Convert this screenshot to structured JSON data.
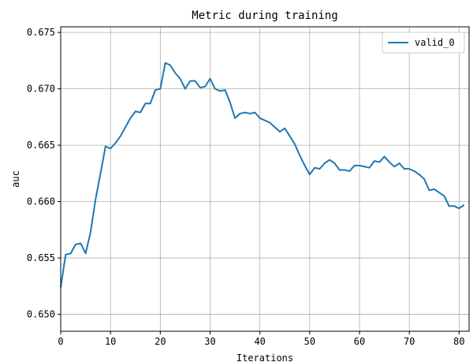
{
  "chart_data": {
    "type": "line",
    "title": "Metric during training",
    "xlabel": "Iterations",
    "ylabel": "auc",
    "xlim": [
      0,
      82
    ],
    "ylim": [
      0.6485,
      0.6755
    ],
    "grid": true,
    "legend_position": "top-right",
    "xticks": [
      "0",
      "10",
      "20",
      "30",
      "40",
      "50",
      "60",
      "70",
      "80"
    ],
    "yticks": [
      "0.650",
      "0.655",
      "0.660",
      "0.665",
      "0.670",
      "0.675"
    ],
    "series": [
      {
        "name": "valid_0",
        "color": "#1f77b4",
        "x": [
          0,
          1,
          2,
          3,
          4,
          5,
          6,
          7,
          8,
          9,
          10,
          11,
          12,
          13,
          14,
          15,
          16,
          17,
          18,
          19,
          20,
          21,
          22,
          23,
          24,
          25,
          26,
          27,
          28,
          29,
          30,
          31,
          32,
          33,
          34,
          35,
          36,
          37,
          38,
          39,
          40,
          41,
          42,
          43,
          44,
          45,
          46,
          47,
          48,
          49,
          50,
          51,
          52,
          53,
          54,
          55,
          56,
          57,
          58,
          59,
          60,
          61,
          62,
          63,
          64,
          65,
          66,
          67,
          68,
          69,
          70,
          71,
          72,
          73,
          74,
          75,
          76,
          77,
          78,
          79,
          80,
          81
        ],
        "values": [
          0.6524,
          0.6553,
          0.6554,
          0.6562,
          0.6563,
          0.6554,
          0.6573,
          0.6602,
          0.6625,
          0.6649,
          0.6647,
          0.6652,
          0.6658,
          0.6666,
          0.6674,
          0.668,
          0.6679,
          0.6687,
          0.6687,
          0.6699,
          0.67,
          0.6723,
          0.6721,
          0.6714,
          0.6709,
          0.67,
          0.6707,
          0.6707,
          0.6701,
          0.6702,
          0.6709,
          0.67,
          0.6698,
          0.6699,
          0.6688,
          0.6674,
          0.6678,
          0.6679,
          0.6678,
          0.6679,
          0.6674,
          0.6672,
          0.667,
          0.6666,
          0.6662,
          0.6665,
          0.6658,
          0.6651,
          0.6641,
          0.6632,
          0.6624,
          0.663,
          0.6629,
          0.6634,
          0.6637,
          0.6634,
          0.6628,
          0.6628,
          0.6627,
          0.6632,
          0.6632,
          0.6631,
          0.663,
          0.6636,
          0.6635,
          0.664,
          0.6635,
          0.6631,
          0.6634,
          0.6629,
          0.6629,
          0.6627,
          0.6624,
          0.662,
          0.661,
          0.6611,
          0.6608,
          0.6605,
          0.6596,
          0.6596,
          0.6594,
          0.6597
        ]
      }
    ]
  }
}
